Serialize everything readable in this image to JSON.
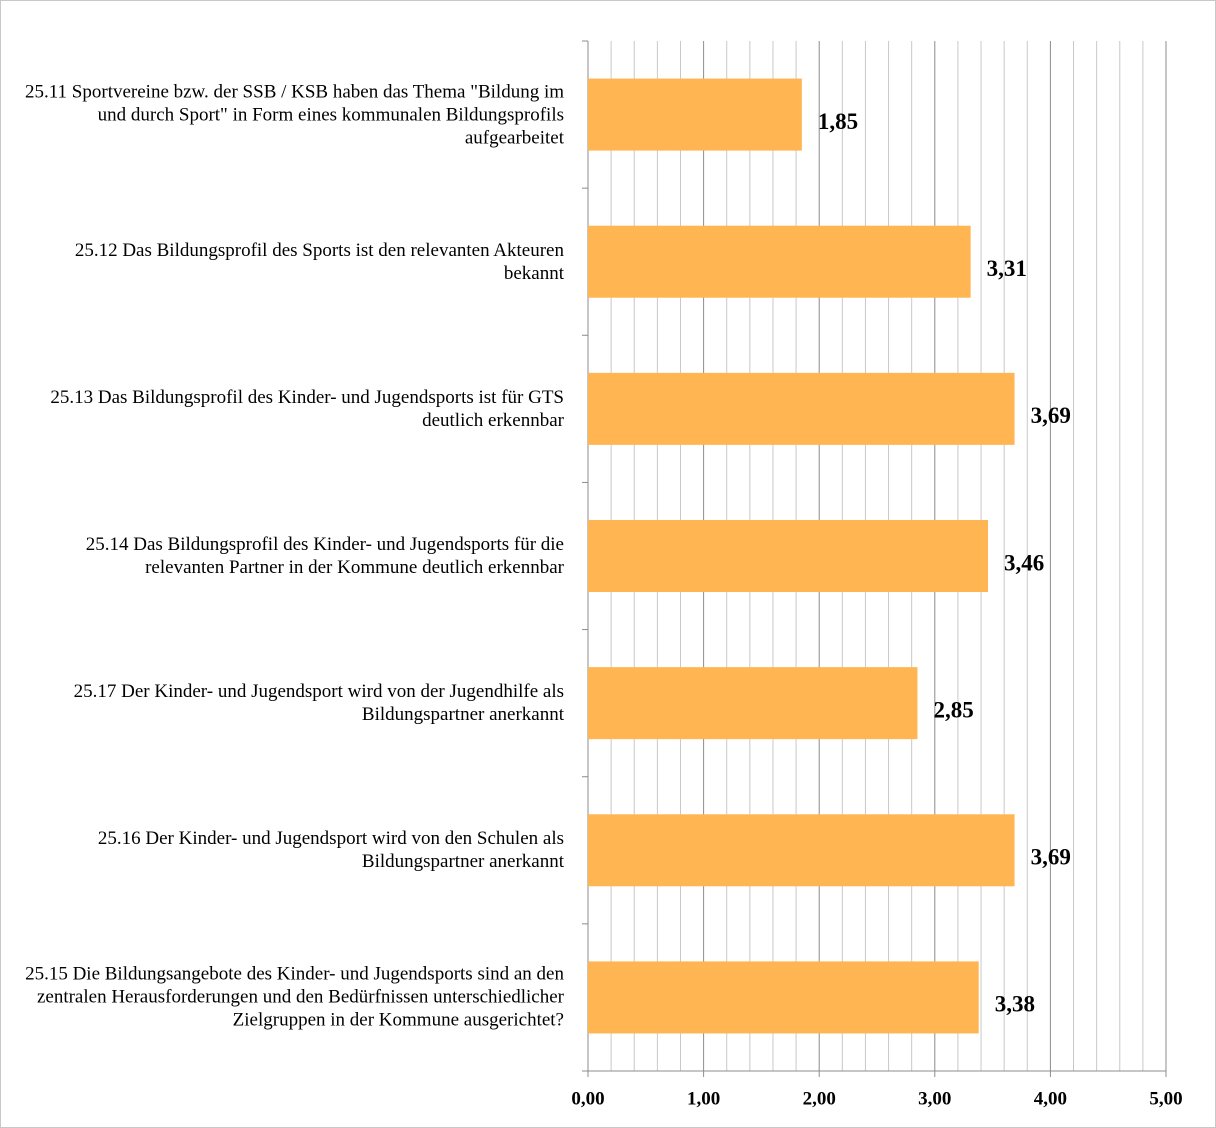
{
  "chart_data": {
    "type": "hbar",
    "categories": [
      "25.11 Sportvereine bzw. der SSB / KSB haben das Thema \"Bildung im und durch Sport\" in Form eines kommunalen Bildungsprofils aufgearbeitet",
      "25.12  Das Bildungsprofil des Sports ist den relevanten Akteuren bekannt",
      "25.13 Das Bildungsprofil des Kinder- und Jugendsports ist für GTS deutlich erkennbar",
      "25.14 Das Bildungsprofil des Kinder- und Jugendsports für die relevanten Partner in der Kommune deutlich erkennbar",
      "25.17 Der  Kinder- und Jugendsport wird von der Jugendhilfe als Bildungspartner anerkannt",
      "25.16 Der Kinder- und Jugendsport wird von den Schulen als Bildungspartner anerkannt",
      "25.15 Die Bildungsangebote des Kinder- und Jugendsports sind an den zentralen Herausforderungen und den Bedürfnissen unterschiedlicher Zielgruppen in der Kommune ausgerichtet?"
    ],
    "values": [
      1.85,
      3.31,
      3.69,
      3.46,
      2.85,
      3.69,
      3.38
    ],
    "value_labels": [
      "1,85",
      "3,31",
      "3,69",
      "3,46",
      "2,85",
      "3,69",
      "3,38"
    ],
    "color": "#ffb552",
    "xlim": [
      0,
      5
    ],
    "xticks": [
      {
        "value": 0,
        "label": "0,00"
      },
      {
        "value": 1,
        "label": "1,00"
      },
      {
        "value": 2,
        "label": "2,00"
      },
      {
        "value": 3,
        "label": "3,00"
      },
      {
        "value": 4,
        "label": "4,00"
      },
      {
        "value": 5,
        "label": "5,00"
      }
    ],
    "xminorticks": [
      0.2,
      0.4,
      0.6,
      0.8,
      1.2,
      1.4,
      1.6,
      1.8,
      2.2,
      2.4,
      2.6,
      2.8,
      3.2,
      3.4,
      3.6,
      3.8,
      4.2,
      4.4,
      4.6,
      4.8
    ],
    "grid": true
  }
}
